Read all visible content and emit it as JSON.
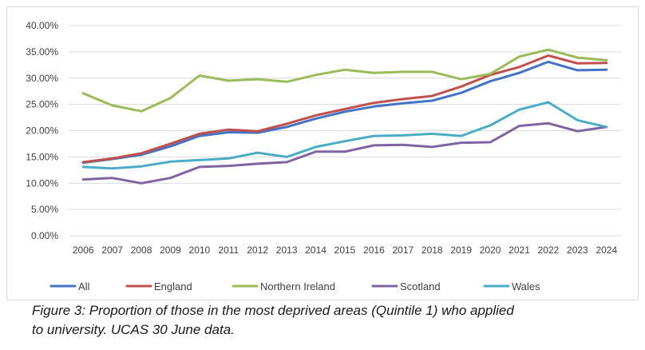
{
  "chart_data": {
    "type": "line",
    "title": "",
    "xlabel": "",
    "ylabel": "",
    "categories": [
      "2006",
      "2007",
      "2008",
      "2009",
      "2010",
      "2011",
      "2012",
      "2013",
      "2014",
      "2015",
      "2016",
      "2017",
      "2018",
      "2019",
      "2020",
      "2021",
      "2022",
      "2023",
      "2024"
    ],
    "ylim": [
      0,
      0.4
    ],
    "yticks": [
      "0.00%",
      "5.00%",
      "10.00%",
      "15.00%",
      "20.00%",
      "25.00%",
      "30.00%",
      "35.00%",
      "40.00%"
    ],
    "grid": true,
    "legend_position": "bottom",
    "series": [
      {
        "name": "All",
        "color": "#4472c4",
        "values": [
          0.139,
          0.146,
          0.154,
          0.17,
          0.19,
          0.197,
          0.196,
          0.207,
          0.223,
          0.236,
          0.246,
          0.252,
          0.257,
          0.272,
          0.294,
          0.31,
          0.331,
          0.315,
          0.316
        ]
      },
      {
        "name": "England",
        "color": "#c0504d",
        "values": [
          0.14,
          0.147,
          0.157,
          0.175,
          0.194,
          0.202,
          0.199,
          0.213,
          0.229,
          0.241,
          0.253,
          0.26,
          0.266,
          0.284,
          0.306,
          0.321,
          0.343,
          0.328,
          0.329
        ]
      },
      {
        "name": "Northern Ireland",
        "color": "#9bbb59",
        "values": [
          0.271,
          0.248,
          0.237,
          0.262,
          0.305,
          0.295,
          0.298,
          0.293,
          0.306,
          0.316,
          0.31,
          0.312,
          0.312,
          0.298,
          0.308,
          0.341,
          0.354,
          0.339,
          0.334
        ]
      },
      {
        "name": "Scotland",
        "color": "#8064a2",
        "values": [
          0.107,
          0.11,
          0.1,
          0.11,
          0.131,
          0.133,
          0.137,
          0.14,
          0.16,
          0.16,
          0.172,
          0.173,
          0.169,
          0.177,
          0.178,
          0.209,
          0.214,
          0.199,
          0.207
        ]
      },
      {
        "name": "Wales",
        "color": "#4bacc6",
        "values": [
          0.131,
          0.128,
          0.132,
          0.141,
          0.144,
          0.147,
          0.158,
          0.15,
          0.169,
          0.18,
          0.19,
          0.191,
          0.194,
          0.19,
          0.21,
          0.24,
          0.254,
          0.22,
          0.207
        ]
      }
    ]
  },
  "caption": {
    "line1": "Figure 3: Proportion of those in the most deprived areas (Quintile 1) who applied",
    "line2": "to university. UCAS 30 June data."
  }
}
